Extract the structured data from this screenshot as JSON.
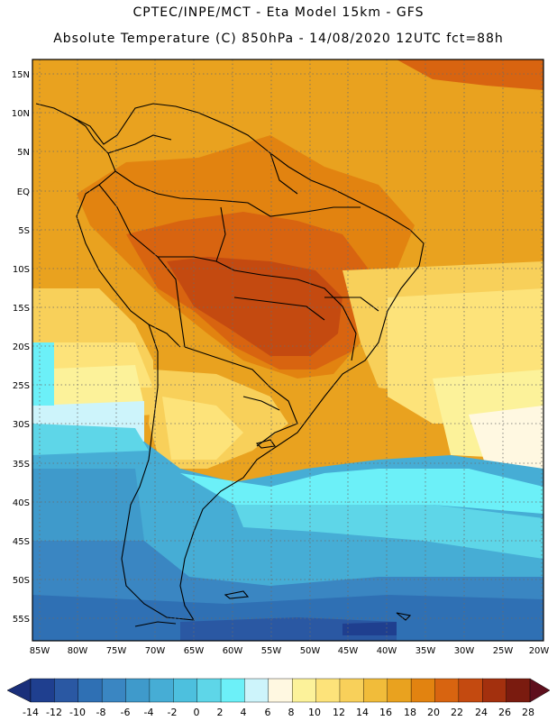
{
  "header": {
    "line1": "CPTEC/INPE/MCT -  Eta Model 15km - GFS",
    "line2": "Absolute Temperature (C) 850hPa - 14/08/2020 12UTC fct=88h"
  },
  "axes": {
    "lat_labels": [
      "15N",
      "10N",
      "5N",
      "EQ",
      "5S",
      "10S",
      "15S",
      "20S",
      "25S",
      "30S",
      "35S",
      "40S",
      "45S",
      "50S",
      "55S"
    ],
    "lon_labels": [
      "85W",
      "80W",
      "75W",
      "70W",
      "65W",
      "60W",
      "55W",
      "50W",
      "45W",
      "40W",
      "35W",
      "30W",
      "25W",
      "20W"
    ]
  },
  "colorbar": {
    "labels": [
      "-14",
      "-12",
      "-10",
      "-8",
      "-6",
      "-4",
      "-2",
      "0",
      "2",
      "4",
      "6",
      "8",
      "10",
      "12",
      "14",
      "16",
      "18",
      "20",
      "22",
      "24",
      "26",
      "28"
    ],
    "colors": [
      "#1f3f8f",
      "#2a58a3",
      "#2f70b4",
      "#3a86c2",
      "#3f9acb",
      "#46add5",
      "#4dc0de",
      "#5ed6e8",
      "#6cf0f8",
      "#cdf4fb",
      "#fff8e1",
      "#fcf29a",
      "#fde37a",
      "#f8d05a",
      "#f1bc3a",
      "#e9a21f",
      "#e28310",
      "#d86410",
      "#c44a10",
      "#a3300e",
      "#7a1b0f"
    ]
  }
}
